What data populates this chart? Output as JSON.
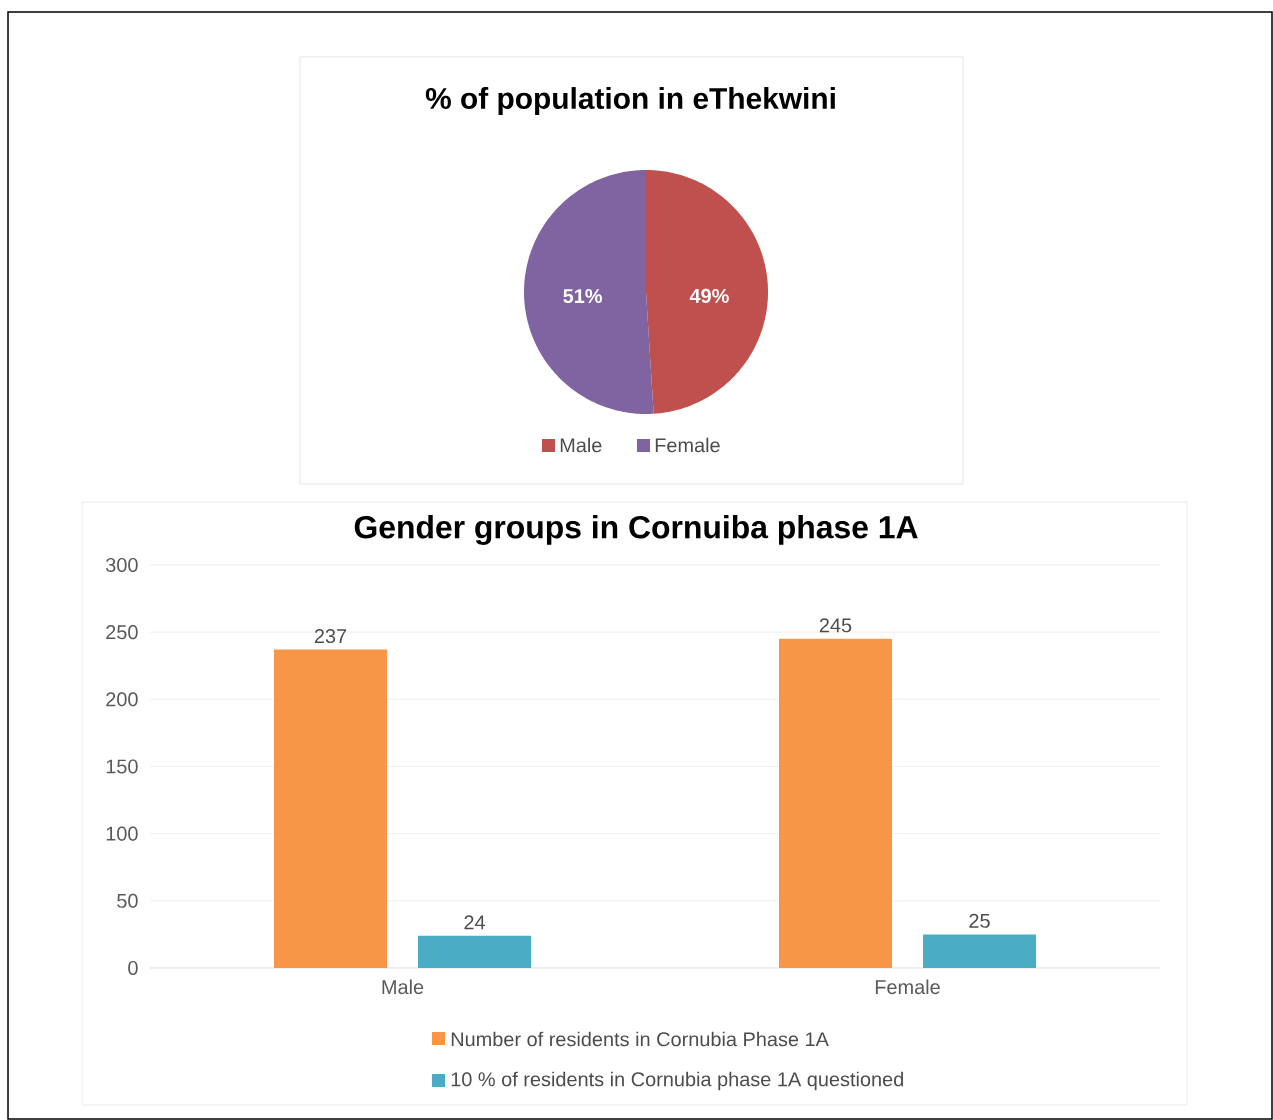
{
  "chart_data": [
    {
      "type": "pie",
      "title": "% of population in eThekwini",
      "categories": [
        "Male",
        "Female"
      ],
      "values": [
        49,
        51
      ],
      "colors": [
        "#c0504d",
        "#8064a2"
      ],
      "value_labels": [
        "49%",
        "51%"
      ],
      "legend": "bottom"
    },
    {
      "type": "bar",
      "title": "Gender groups in Cornuiba phase 1A",
      "categories": [
        "Male",
        "Female"
      ],
      "series": [
        {
          "name": "Number of residents in Cornubia Phase 1A",
          "color": "#f79646",
          "values": [
            237,
            245
          ]
        },
        {
          "name": "10 % of residents in Cornubia phase 1A questioned",
          "color": "#4bacc6",
          "values": [
            24,
            25
          ]
        }
      ],
      "ylim": [
        0,
        300
      ],
      "yticks": [
        0,
        50,
        100,
        150,
        200,
        250,
        300
      ],
      "grid": "y",
      "data_labels": true,
      "legend": "bottom"
    }
  ]
}
